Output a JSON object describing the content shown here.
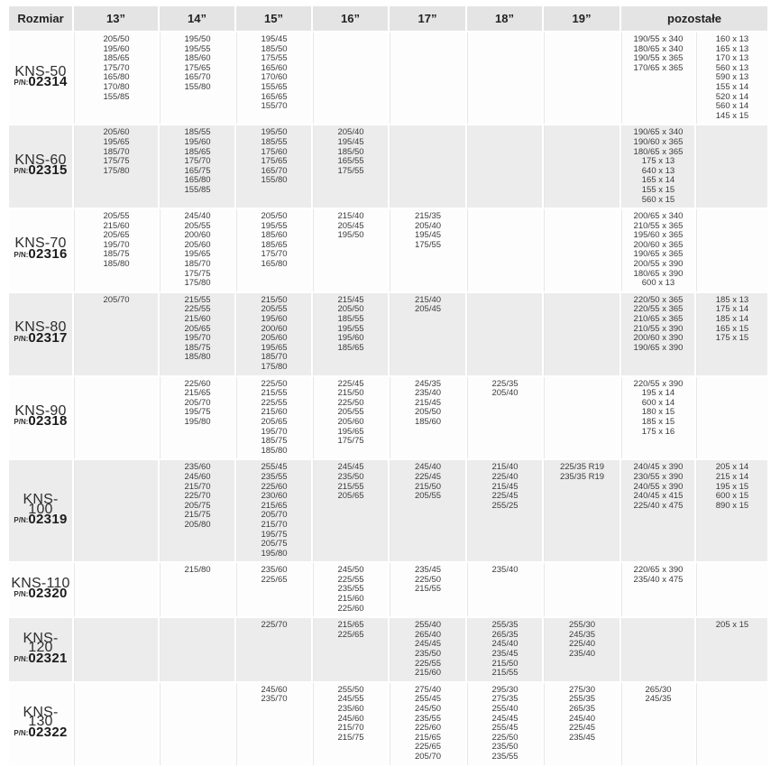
{
  "colors": {
    "header_bg": "#e4e4e4",
    "row_bg": "#fdfdfd",
    "row_alt_bg": "#ececec",
    "text": "#3a3a3a"
  },
  "header": {
    "columns": [
      "Rozmiar",
      "13”",
      "14”",
      "15”",
      "16”",
      "17”",
      "18”",
      "19”",
      "pozostałe"
    ]
  },
  "column_keys": [
    "c13",
    "c14",
    "c15",
    "c16",
    "c17",
    "c18",
    "c19",
    "poz1",
    "poz2"
  ],
  "rows": [
    {
      "model": "KNS-50",
      "pn_label": "P/N:",
      "pn": "02314",
      "sizes": {
        "c13": [
          "205/50",
          "195/60",
          "185/65",
          "175/70",
          "165/80",
          "170/80",
          "155/85"
        ],
        "c14": [
          "195/50",
          "195/55",
          "185/60",
          "175/65",
          "165/70",
          "155/80"
        ],
        "c15": [
          "195/45",
          "185/50",
          "175/55",
          "165/60",
          "170/60",
          "155/65",
          "165/65",
          "155/70"
        ],
        "c16": [],
        "c17": [],
        "c18": [],
        "c19": [],
        "poz1": [
          "190/55 x 340",
          "180/65 x 340",
          "190/55 x 365",
          "170/65 x 365"
        ],
        "poz2": [
          "160 x 13",
          "165 x 13",
          "170 x 13",
          "560 x 13",
          "590 x 13",
          "155 x 14",
          "520 x 14",
          "560 x 14",
          "145 x 15"
        ]
      }
    },
    {
      "model": "KNS-60",
      "pn_label": "P/N:",
      "pn": "02315",
      "sizes": {
        "c13": [
          "205/60",
          "195/65",
          "185/70",
          "175/75",
          "175/80"
        ],
        "c14": [
          "185/55",
          "195/60",
          "185/65",
          "175/70",
          "165/75",
          "165/80",
          "155/85"
        ],
        "c15": [
          "195/50",
          "185/55",
          "175/60",
          "175/65",
          "165/70",
          "155/80"
        ],
        "c16": [
          "205/40",
          "195/45",
          "185/50",
          "165/55",
          "175/55"
        ],
        "c17": [],
        "c18": [],
        "c19": [],
        "poz1": [
          "190/65 x 340",
          "190/60 x 365",
          "180/65 x 365",
          "175 x 13",
          "640 x 13",
          "165 x 14",
          "155 x 15",
          "560 x 15"
        ],
        "poz2": []
      }
    },
    {
      "model": "KNS-70",
      "pn_label": "P/N:",
      "pn": "02316",
      "sizes": {
        "c13": [
          "205/55",
          "215/60",
          "205/65",
          "195/70",
          "185/75",
          "185/80"
        ],
        "c14": [
          "245/40",
          "205/55",
          "200/60",
          "205/60",
          "195/65",
          "185/70",
          "175/75",
          "175/80"
        ],
        "c15": [
          "205/50",
          "195/55",
          "185/60",
          "185/65",
          "175/70",
          "165/80"
        ],
        "c16": [
          "215/40",
          "205/45",
          "195/50"
        ],
        "c17": [
          "215/35",
          "205/40",
          "195/45",
          "175/55"
        ],
        "c18": [],
        "c19": [],
        "poz1": [
          "200/65 x 340",
          "210/55 x 365",
          "195/60 x 365",
          "200/60 x 365",
          "190/65 x 365",
          "200/55 x 390",
          "180/65 x 390",
          "600 x 13"
        ],
        "poz2": []
      }
    },
    {
      "model": "KNS-80",
      "pn_label": "P/N:",
      "pn": "02317",
      "sizes": {
        "c13": [
          "205/70"
        ],
        "c14": [
          "215/55",
          "225/55",
          "215/60",
          "205/65",
          "195/70",
          "185/75",
          "185/80"
        ],
        "c15": [
          "215/50",
          "205/55",
          "195/60",
          "200/60",
          "205/60",
          "195/65",
          "185/70",
          "175/80"
        ],
        "c16": [
          "215/45",
          "205/50",
          "185/55",
          "195/55",
          "195/60",
          "185/65"
        ],
        "c17": [
          "215/40",
          "205/45"
        ],
        "c18": [],
        "c19": [],
        "poz1": [
          "220/50 x 365",
          "220/55 x 365",
          "210/65 x 365",
          "210/55 x 390",
          "200/60 x 390",
          "190/65 x 390"
        ],
        "poz2": [
          "185 x 13",
          "175 x 14",
          "185 x 14",
          "165 x 15",
          "175 x 15"
        ]
      }
    },
    {
      "model": "KNS-90",
      "pn_label": "P/N:",
      "pn": "02318",
      "sizes": {
        "c13": [],
        "c14": [
          "225/60",
          "215/65",
          "205/70",
          "195/75",
          "195/80"
        ],
        "c15": [
          "225/50",
          "215/55",
          "225/55",
          "215/60",
          "205/65",
          "195/70",
          "185/75",
          "185/80"
        ],
        "c16": [
          "225/45",
          "215/50",
          "225/50",
          "205/55",
          "205/60",
          "195/65",
          "175/75"
        ],
        "c17": [
          "245/35",
          "235/40",
          "215/45",
          "205/50",
          "185/60"
        ],
        "c18": [
          "225/35",
          "205/40"
        ],
        "c19": [],
        "poz1": [
          "220/55 x 390",
          "195 x 14",
          "600 x 14",
          "180 x 15",
          "185 x 15",
          "175 x 16"
        ],
        "poz2": []
      }
    },
    {
      "model": "KNS-100",
      "pn_label": "P/N:",
      "pn": "02319",
      "sizes": {
        "c13": [],
        "c14": [
          "235/60",
          "245/60",
          "215/70",
          "225/70",
          "205/75",
          "215/75",
          "205/80"
        ],
        "c15": [
          "255/45",
          "235/55",
          "225/60",
          "230/60",
          "215/65",
          "205/70",
          "215/70",
          "195/75",
          "205/75",
          "195/80"
        ],
        "c16": [
          "245/45",
          "235/50",
          "215/55",
          "205/65"
        ],
        "c17": [
          "245/40",
          "225/45",
          "215/50",
          "205/55"
        ],
        "c18": [
          "215/40",
          "225/40",
          "215/45",
          "225/45",
          "255/25"
        ],
        "c19": [
          "225/35 R19",
          "235/35 R19"
        ],
        "poz1": [
          "240/45 x 390",
          "230/55 x 390",
          "240/55 x 390",
          "240/45 x 415",
          "225/40 x 475"
        ],
        "poz2": [
          "205 x 14",
          "215 x 14",
          "195 x 15",
          "600 x 15",
          "890 x 15"
        ]
      }
    },
    {
      "model": "KNS-110",
      "pn_label": "P/N:",
      "pn": "02320",
      "sizes": {
        "c13": [],
        "c14": [
          "215/80"
        ],
        "c15": [
          "235/60",
          "225/65"
        ],
        "c16": [
          "245/50",
          "225/55",
          "235/55",
          "215/60",
          "225/60"
        ],
        "c17": [
          "235/45",
          "225/50",
          "215/55"
        ],
        "c18": [
          "235/40"
        ],
        "c19": [],
        "poz1": [
          "220/65 x 390",
          "235/40 x 475"
        ],
        "poz2": []
      }
    },
    {
      "model": "KNS-120",
      "pn_label": "P/N:",
      "pn": "02321",
      "sizes": {
        "c13": [],
        "c14": [],
        "c15": [
          "225/70"
        ],
        "c16": [
          "215/65",
          "225/65"
        ],
        "c17": [
          "255/40",
          "265/40",
          "245/45",
          "235/50",
          "225/55",
          "215/60"
        ],
        "c18": [
          "255/35",
          "265/35",
          "245/40",
          "235/45",
          "215/50",
          "215/55"
        ],
        "c19": [
          "255/30",
          "245/35",
          "225/40",
          "235/40"
        ],
        "poz1": [],
        "poz2": [
          "205 x 15"
        ]
      }
    },
    {
      "model": "KNS-130",
      "pn_label": "P/N:",
      "pn": "02322",
      "sizes": {
        "c13": [],
        "c14": [],
        "c15": [
          "245/60",
          "235/70"
        ],
        "c16": [
          "255/50",
          "245/55",
          "235/60",
          "245/60",
          "215/70",
          "215/75"
        ],
        "c17": [
          "275/40",
          "255/45",
          "245/50",
          "235/55",
          "225/60",
          "215/65",
          "225/65",
          "205/70"
        ],
        "c18": [
          "295/30",
          "275/35",
          "255/40",
          "245/45",
          "255/45",
          "225/50",
          "235/50",
          "235/55"
        ],
        "c19": [
          "275/30",
          "255/35",
          "265/35",
          "245/40",
          "225/45",
          "235/45"
        ],
        "poz1": [
          "265/30",
          "245/35"
        ],
        "poz2": []
      }
    }
  ]
}
